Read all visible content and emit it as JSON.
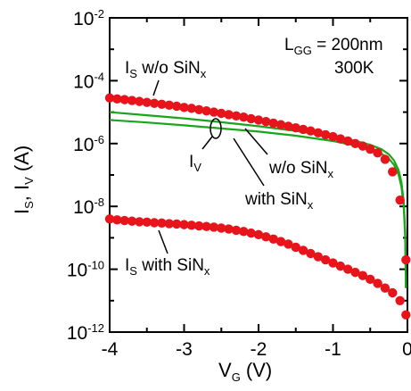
{
  "chart_data": {
    "type": "scatter",
    "title": "",
    "xlabel": {
      "main": "V",
      "sub": "G",
      "rest": " (V)"
    },
    "ylabel": {
      "p1": "I",
      "s1": "S",
      "p2": ", I",
      "s2": "V",
      "p3": " (A)"
    },
    "x_range": [
      -4,
      0
    ],
    "y_log_range": [
      -12,
      -2
    ],
    "y_scale": "log",
    "x_ticks": [
      {
        "value": -4,
        "label": "-4"
      },
      {
        "value": -3,
        "label": "-3"
      },
      {
        "value": -2,
        "label": "-2"
      },
      {
        "value": -1,
        "label": "-1"
      },
      {
        "value": 0,
        "label": "0"
      }
    ],
    "y_ticks": [
      {
        "exp": -2,
        "base": "10",
        "power": "-2"
      },
      {
        "exp": -4,
        "base": "10",
        "power": "-4"
      },
      {
        "exp": -6,
        "base": "10",
        "power": "-6"
      },
      {
        "exp": -8,
        "base": "10",
        "power": "-8"
      },
      {
        "exp": -10,
        "base": "10",
        "power": "-10"
      },
      {
        "exp": -12,
        "base": "10",
        "power": "-12"
      }
    ],
    "colors": {
      "is_points": "#e8141b",
      "iv_lines": "#1aa51a",
      "axis": "#000000"
    },
    "series": [
      {
        "kind": "points",
        "x": [
          -4.0,
          -3.9,
          -3.8,
          -3.7,
          -3.6,
          -3.5,
          -3.4,
          -3.3,
          -3.2,
          -3.1,
          -3.0,
          -2.9,
          -2.8,
          -2.7,
          -2.6,
          -2.5,
          -2.4,
          -2.3,
          -2.2,
          -2.1,
          -2.0,
          -1.9,
          -1.8,
          -1.7,
          -1.6,
          -1.5,
          -1.4,
          -1.3,
          -1.2,
          -1.1,
          -1.0,
          -0.9,
          -0.8,
          -0.7,
          -0.6,
          -0.5,
          -0.4,
          -0.3,
          -0.2,
          -0.1,
          -0.02
        ],
        "y_log10": [
          -4.55,
          -4.58,
          -4.6,
          -4.63,
          -4.66,
          -4.69,
          -4.72,
          -4.75,
          -4.78,
          -4.81,
          -4.85,
          -4.88,
          -4.92,
          -4.96,
          -5.0,
          -5.04,
          -5.08,
          -5.12,
          -5.16,
          -5.21,
          -5.25,
          -5.3,
          -5.35,
          -5.4,
          -5.45,
          -5.5,
          -5.55,
          -5.6,
          -5.66,
          -5.72,
          -5.78,
          -5.85,
          -5.92,
          -6.0,
          -6.08,
          -6.18,
          -6.3,
          -6.5,
          -6.9,
          -7.8,
          -9.7
        ]
      },
      {
        "kind": "points",
        "x": [
          -4.0,
          -3.9,
          -3.8,
          -3.7,
          -3.6,
          -3.5,
          -3.4,
          -3.3,
          -3.2,
          -3.1,
          -3.0,
          -2.9,
          -2.8,
          -2.7,
          -2.6,
          -2.5,
          -2.4,
          -2.3,
          -2.2,
          -2.1,
          -2.0,
          -1.9,
          -1.8,
          -1.7,
          -1.6,
          -1.5,
          -1.4,
          -1.3,
          -1.2,
          -1.1,
          -1.0,
          -0.9,
          -0.8,
          -0.7,
          -0.6,
          -0.5,
          -0.4,
          -0.3,
          -0.2,
          -0.1,
          -0.02
        ],
        "y_log10": [
          -8.4,
          -8.43,
          -8.45,
          -8.47,
          -8.49,
          -8.5,
          -8.52,
          -8.53,
          -8.55,
          -8.56,
          -8.58,
          -8.6,
          -8.62,
          -8.64,
          -8.66,
          -8.69,
          -8.72,
          -8.76,
          -8.8,
          -8.85,
          -8.9,
          -8.97,
          -9.04,
          -9.12,
          -9.2,
          -9.3,
          -9.4,
          -9.5,
          -9.6,
          -9.7,
          -9.8,
          -9.9,
          -10.0,
          -10.1,
          -10.2,
          -10.32,
          -10.45,
          -10.6,
          -10.75,
          -11.0,
          -11.45
        ]
      },
      {
        "kind": "line",
        "x": [
          -4.0,
          -3.5,
          -3.0,
          -2.5,
          -2.0,
          -1.5,
          -1.0,
          -0.7,
          -0.5,
          -0.35,
          -0.25,
          -0.18,
          -0.12,
          -0.08,
          -0.05,
          -0.03,
          -0.02
        ],
        "y_log10": [
          -5.0,
          -5.1,
          -5.2,
          -5.32,
          -5.45,
          -5.6,
          -5.78,
          -5.92,
          -6.04,
          -6.18,
          -6.34,
          -6.54,
          -6.84,
          -7.24,
          -7.84,
          -8.84,
          -10.6
        ]
      },
      {
        "kind": "line",
        "x": [
          -4.0,
          -3.5,
          -3.0,
          -2.5,
          -2.0,
          -1.5,
          -1.0,
          -0.7,
          -0.5,
          -0.35,
          -0.25,
          -0.18,
          -0.12,
          -0.08,
          -0.05,
          -0.03,
          -0.02
        ],
        "y_log10": [
          -5.25,
          -5.33,
          -5.42,
          -5.52,
          -5.62,
          -5.75,
          -5.92,
          -6.06,
          -6.18,
          -6.32,
          -6.48,
          -6.68,
          -6.98,
          -7.38,
          -7.98,
          -8.98,
          -10.6
        ]
      }
    ],
    "annotations": {
      "lgg": {
        "main": "L",
        "sub": "GG",
        "rest": " = 200nm"
      },
      "temp": "300K",
      "is_without": {
        "main": "I",
        "sub": "S",
        "rest": " w/o SiN",
        "sub2": "x"
      },
      "is_with": {
        "main": "I",
        "sub": "S",
        "rest": " with SiN",
        "sub2": "x"
      },
      "iv": {
        "main": "I",
        "sub": "V"
      },
      "wo_sin": {
        "main": "w/o SiN",
        "sub": "x"
      },
      "with_sin": {
        "main": "with SiN",
        "sub": "x"
      }
    }
  }
}
